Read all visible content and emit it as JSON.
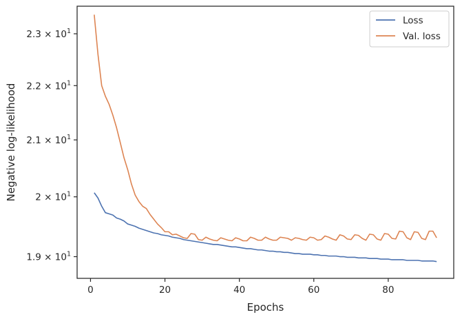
{
  "chart_data": {
    "type": "line",
    "title": "",
    "xlabel": "Epochs",
    "ylabel": "Negative log-likelihood",
    "yscale": "log",
    "xlim": [
      -3.6,
      97.6
    ],
    "ylim": [
      18.65,
      23.55
    ],
    "xticks": [
      0,
      20,
      40,
      60,
      80
    ],
    "xtick_labels": [
      "0",
      "20",
      "40",
      "60",
      "80"
    ],
    "yticks": [
      19,
      20,
      21,
      22,
      23
    ],
    "ytick_labels": [
      {
        "mantissa": "1.9",
        "exp": "1"
      },
      {
        "mantissa": "2",
        "exp": "1"
      },
      {
        "mantissa": "2.1",
        "exp": "1"
      },
      {
        "mantissa": "2.2",
        "exp": "1"
      },
      {
        "mantissa": "2.3",
        "exp": "1"
      }
    ],
    "grid": false,
    "legend_position": "top-right",
    "series": [
      {
        "name": "Loss",
        "color": "#4c72b0",
        "x": [
          1,
          2,
          3,
          4,
          5,
          6,
          7,
          8,
          9,
          10,
          11,
          12,
          13,
          14,
          15,
          16,
          17,
          18,
          19,
          20,
          21,
          22,
          23,
          24,
          25,
          26,
          27,
          28,
          29,
          30,
          31,
          32,
          33,
          34,
          35,
          36,
          37,
          38,
          39,
          40,
          41,
          42,
          43,
          44,
          45,
          46,
          47,
          48,
          49,
          50,
          51,
          52,
          53,
          54,
          55,
          56,
          57,
          58,
          59,
          60,
          61,
          62,
          63,
          64,
          65,
          66,
          67,
          68,
          69,
          70,
          71,
          72,
          73,
          74,
          75,
          76,
          77,
          78,
          79,
          80,
          81,
          82,
          83,
          84,
          85,
          86,
          87,
          88,
          89,
          90,
          91,
          92,
          93
        ],
        "values": [
          20.07,
          19.98,
          19.84,
          19.73,
          19.71,
          19.69,
          19.64,
          19.62,
          19.59,
          19.54,
          19.52,
          19.5,
          19.47,
          19.45,
          19.43,
          19.41,
          19.39,
          19.38,
          19.36,
          19.35,
          19.34,
          19.32,
          19.31,
          19.3,
          19.28,
          19.27,
          19.26,
          19.25,
          19.24,
          19.23,
          19.22,
          19.21,
          19.2,
          19.2,
          19.19,
          19.18,
          19.17,
          19.16,
          19.16,
          19.15,
          19.14,
          19.13,
          19.13,
          19.12,
          19.11,
          19.11,
          19.1,
          19.09,
          19.09,
          19.08,
          19.08,
          19.07,
          19.07,
          19.06,
          19.05,
          19.05,
          19.04,
          19.04,
          19.04,
          19.03,
          19.03,
          19.02,
          19.02,
          19.01,
          19.01,
          19.01,
          19.0,
          19.0,
          18.99,
          18.99,
          18.99,
          18.98,
          18.98,
          18.98,
          18.97,
          18.97,
          18.97,
          18.96,
          18.96,
          18.96,
          18.95,
          18.95,
          18.95,
          18.95,
          18.94,
          18.94,
          18.94,
          18.94,
          18.93,
          18.93,
          18.93,
          18.93,
          18.92
        ]
      },
      {
        "name": "Val. loss",
        "color": "#dd8452",
        "x": [
          1,
          2,
          3,
          4,
          5,
          6,
          7,
          8,
          9,
          10,
          11,
          12,
          13,
          14,
          15,
          16,
          17,
          18,
          19,
          20,
          21,
          22,
          23,
          24,
          25,
          26,
          27,
          28,
          29,
          30,
          31,
          32,
          33,
          34,
          35,
          36,
          37,
          38,
          39,
          40,
          41,
          42,
          43,
          44,
          45,
          46,
          47,
          48,
          49,
          50,
          51,
          52,
          53,
          54,
          55,
          56,
          57,
          58,
          59,
          60,
          61,
          62,
          63,
          64,
          65,
          66,
          67,
          68,
          69,
          70,
          71,
          72,
          73,
          74,
          75,
          76,
          77,
          78,
          79,
          80,
          81,
          82,
          83,
          84,
          85,
          86,
          87,
          88,
          89,
          90,
          91,
          92,
          93
        ],
        "values": [
          23.38,
          22.6,
          22.0,
          21.8,
          21.65,
          21.45,
          21.22,
          20.95,
          20.68,
          20.47,
          20.22,
          20.03,
          19.92,
          19.84,
          19.8,
          19.7,
          19.62,
          19.54,
          19.48,
          19.41,
          19.41,
          19.36,
          19.37,
          19.34,
          19.31,
          19.3,
          19.38,
          19.37,
          19.28,
          19.27,
          19.32,
          19.29,
          19.27,
          19.26,
          19.31,
          19.29,
          19.27,
          19.26,
          19.31,
          19.29,
          19.26,
          19.26,
          19.32,
          19.3,
          19.27,
          19.27,
          19.32,
          19.29,
          19.27,
          19.27,
          19.32,
          19.31,
          19.3,
          19.27,
          19.31,
          19.3,
          19.28,
          19.27,
          19.32,
          19.31,
          19.27,
          19.28,
          19.34,
          19.32,
          19.29,
          19.27,
          19.36,
          19.34,
          19.29,
          19.28,
          19.36,
          19.35,
          19.3,
          19.27,
          19.37,
          19.36,
          19.29,
          19.27,
          19.38,
          19.37,
          19.3,
          19.29,
          19.42,
          19.41,
          19.31,
          19.28,
          19.41,
          19.4,
          19.3,
          19.28,
          19.42,
          19.42,
          19.31
        ]
      }
    ]
  }
}
